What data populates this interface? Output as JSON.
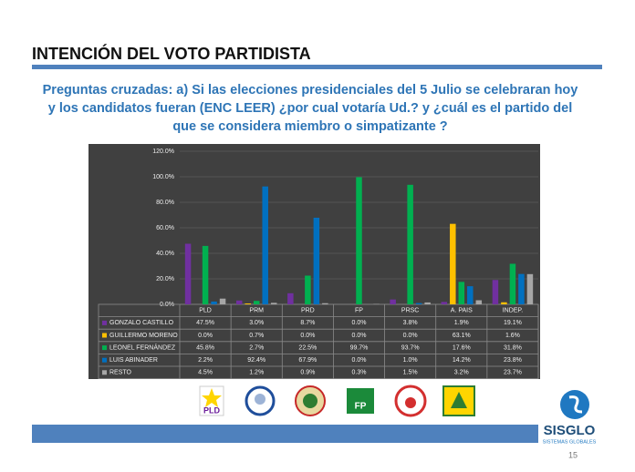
{
  "slide": {
    "page": "15",
    "brand": "SISGLO",
    "brand_sub": "SISTEMAS GLOBALES",
    "logo_texts": {
      "pld": "PLD",
      "fp": "FP"
    }
  },
  "chart_data": {
    "type": "bar",
    "title": "INTENCIÓN DEL VOTO PARTIDISTA",
    "subtitle": [
      "Preguntas cruzadas: a) Si las elecciones  presidenciales del 5 Julio se celebraran hoy",
      "y los candidatos fueran (ENC LEER) ¿por cual votaría Ud.? y ¿cuál es el partido del",
      "que se considera miembro o simpatizante ?"
    ],
    "categories": [
      "PLD",
      "PRM",
      "PRD",
      "FP",
      "PRSC",
      "A. PAIS",
      "INDEP."
    ],
    "ylim": [
      0,
      120
    ],
    "yticks": [
      {
        "value": 0,
        "label": "0.0%"
      },
      {
        "value": 20,
        "label": "20.0%"
      },
      {
        "value": 40,
        "label": "40.0%"
      },
      {
        "value": 60,
        "label": "60.0%"
      },
      {
        "value": 80,
        "label": "80.0%"
      },
      {
        "value": 100,
        "label": "100.0%"
      },
      {
        "value": 120,
        "label": "120.0%"
      }
    ],
    "grid": true,
    "series": [
      {
        "name": "GONZALO CASTILLO",
        "color": "#7030a0",
        "values": [
          47.5,
          3.0,
          8.7,
          0.0,
          3.8,
          1.9,
          19.1
        ],
        "value_labels": [
          "47.5%",
          "3.0%",
          "8.7%",
          "0.0%",
          "3.8%",
          "1.9%",
          "19.1%"
        ]
      },
      {
        "name": "GUILLERMO MORENO",
        "color": "#ffc000",
        "values": [
          0.0,
          0.7,
          0.0,
          0.0,
          0.0,
          63.1,
          1.6
        ],
        "value_labels": [
          "0.0%",
          "0.7%",
          "0.0%",
          "0.0%",
          "0.0%",
          "63.1%",
          "1.6%"
        ]
      },
      {
        "name": "LEONEL FERNÁNDEZ",
        "color": "#00b050",
        "values": [
          45.8,
          2.7,
          22.5,
          99.7,
          93.7,
          17.6,
          31.8
        ],
        "value_labels": [
          "45.8%",
          "2.7%",
          "22.5%",
          "99.7%",
          "93.7%",
          "17.6%",
          "31.8%"
        ]
      },
      {
        "name": "LUIS ABINADER",
        "color": "#0070c0",
        "values": [
          2.2,
          92.4,
          67.9,
          0.0,
          1.0,
          14.2,
          23.8
        ],
        "value_labels": [
          "2.2%",
          "92.4%",
          "67.9%",
          "0.0%",
          "1.0%",
          "14.2%",
          "23.8%"
        ]
      },
      {
        "name": "RESTO",
        "color": "#a6a6a6",
        "values": [
          4.5,
          1.2,
          0.9,
          0.3,
          1.5,
          3.2,
          23.7
        ],
        "value_labels": [
          "4.5%",
          "1.2%",
          "0.9%",
          "0.3%",
          "1.5%",
          "3.2%",
          "23.7%"
        ]
      }
    ]
  }
}
